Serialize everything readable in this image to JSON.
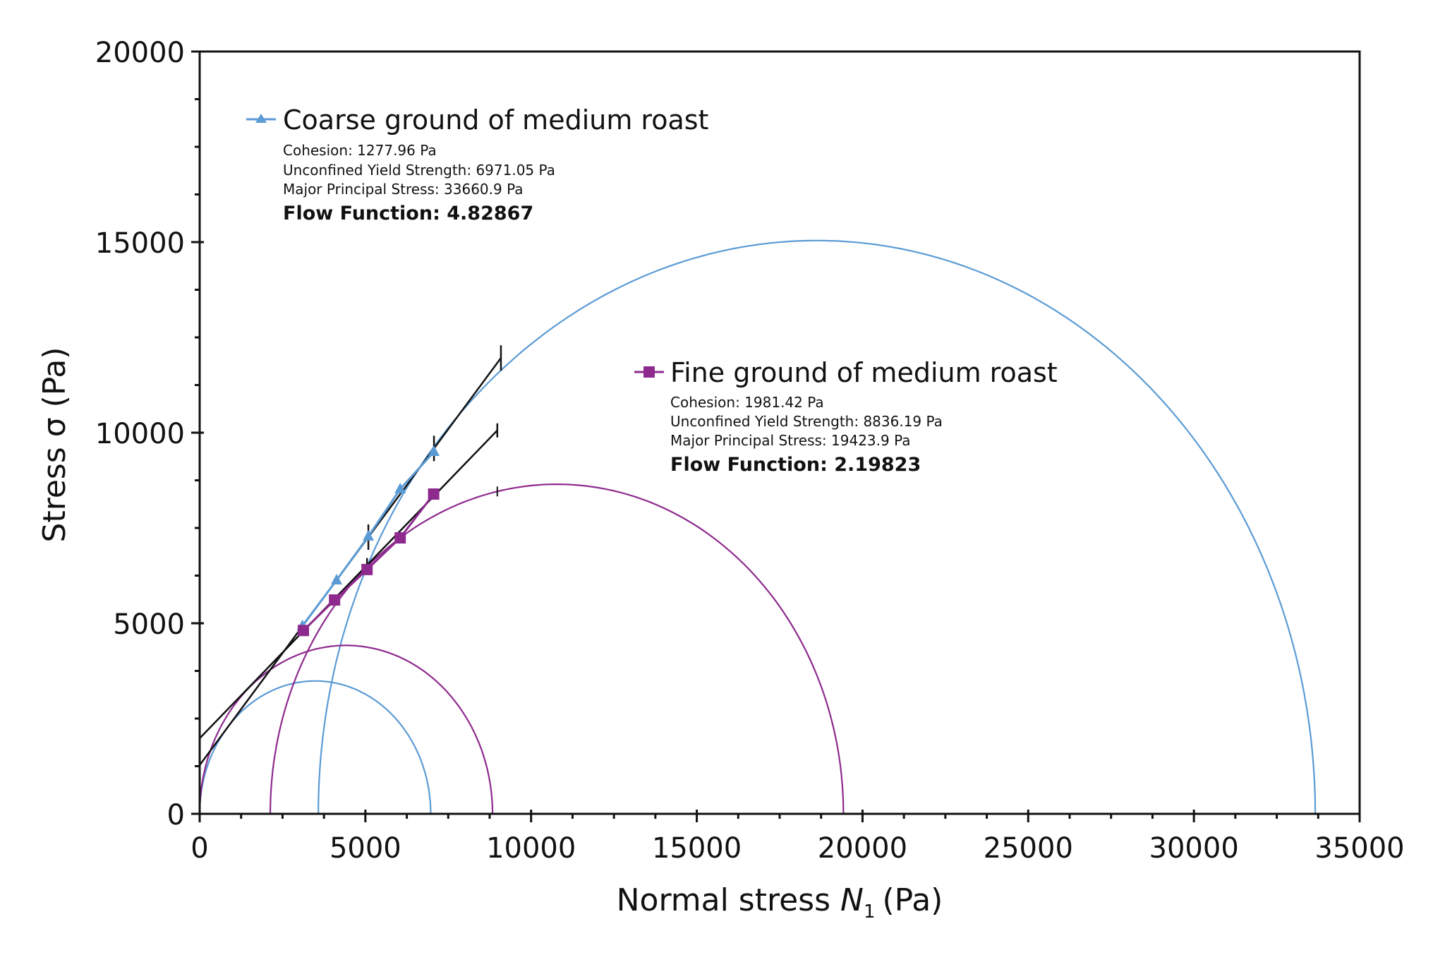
{
  "chart_data": {
    "type": "scatter",
    "title": "",
    "xlabel": "Normal stress",
    "xlabel_var": "N",
    "xlabel_sub": "1",
    "xlabel_unit": "(Pa)",
    "ylabel": "Stress σ (Pa)",
    "xlim": [
      0,
      35000
    ],
    "ylim": [
      0,
      20000
    ],
    "x_ticks": [
      0,
      5000,
      10000,
      15000,
      20000,
      25000,
      30000,
      35000
    ],
    "x_tick_labels": [
      "0",
      "5000",
      "10000",
      "15000",
      "20000",
      "25000",
      "30000",
      "35000"
    ],
    "y_ticks": [
      0,
      5000,
      10000,
      15000,
      20000
    ],
    "y_tick_labels": [
      "0",
      "5000",
      "10000",
      "15000",
      "20000"
    ],
    "minor_tick_step": 1250,
    "grid": false,
    "series": [
      {
        "name": "Coarse ground of medium roast",
        "color": "#5b9bd5",
        "marker": "triangle",
        "points": [
          [
            3100,
            4930
          ],
          [
            4130,
            6130
          ],
          [
            5090,
            7280
          ],
          [
            6050,
            8520
          ],
          [
            7070,
            9500
          ]
        ],
        "stats": {
          "cohesion": "Cohesion: 1277.96 Pa",
          "uys": "Unconfined Yield Strength: 6971.05 Pa",
          "mps": "Major Principal Stress: 33660.9 Pa",
          "ff": "Flow Function: 4.82867"
        },
        "yield_locus": {
          "x": [
            0,
            9090
          ],
          "y": [
            1277.96,
            11960
          ],
          "marks_x": [
            5090,
            7070,
            9090
          ]
        },
        "mohr_circles": [
          {
            "from": 0,
            "to": 6971.05
          },
          {
            "from": 3580,
            "to": 33660.9
          }
        ]
      },
      {
        "name": "Fine ground of medium roast",
        "color": "#8e2a8e",
        "marker": "square",
        "points": [
          [
            3130,
            4810
          ],
          [
            4070,
            5610
          ],
          [
            5050,
            6410
          ],
          [
            6050,
            7240
          ],
          [
            7060,
            8390
          ]
        ],
        "stats": {
          "cohesion": "Cohesion: 1981.42 Pa",
          "uys": "Unconfined Yield Strength: 8836.19 Pa",
          "mps": "Major Principal Stress: 19423.9 Pa",
          "ff": "Flow Function: 2.19823"
        },
        "yield_locus": {
          "x": [
            0,
            8980
          ],
          "y": [
            1981.42,
            10060
          ],
          "marks_x": [
            5050,
            8980
          ]
        },
        "mohr_circles": [
          {
            "from": 0,
            "to": 8836.19
          },
          {
            "from": 2130,
            "to": 19423.9
          }
        ],
        "circle_mark_x": 8980
      }
    ],
    "legend_placement": "inside-top-left"
  }
}
